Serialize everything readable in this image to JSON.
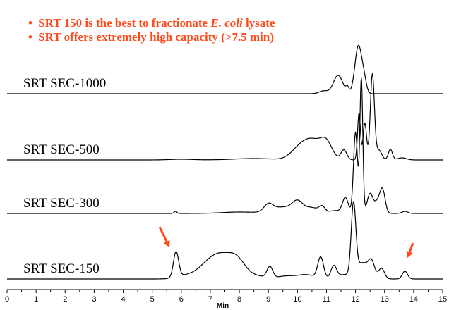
{
  "bullets": [
    {
      "prefix": "SRT 150 is the best to fractionate ",
      "emph": "E. coli",
      "suffix": " lysate"
    },
    {
      "prefix": "SRT offers extremely high capacity (>7.5 min)",
      "emph": "",
      "suffix": ""
    }
  ],
  "bullet_symbol": "•",
  "colors": {
    "accent": "#ff4a1c",
    "trace": "#000000"
  },
  "chart_data": {
    "type": "line",
    "xlabel": "Min",
    "xlim": [
      0,
      15
    ],
    "xticks": [
      "0",
      "1",
      "2",
      "3",
      "4",
      "5",
      "6",
      "7",
      "8",
      "9",
      "10",
      "11",
      "12",
      "13",
      "14",
      "15"
    ],
    "series": [
      {
        "name": "SRT SEC-1000",
        "baseline": 0,
        "peaks": [
          [
            10.9,
            4,
            0.15
          ],
          [
            11.4,
            26,
            0.16
          ],
          [
            11.72,
            8,
            0.05
          ],
          [
            12.1,
            68,
            0.12
          ],
          [
            12.3,
            15,
            0.08
          ]
        ]
      },
      {
        "name": "SRT SEC-500",
        "baseline": 0,
        "peaks": [
          [
            6.0,
            1,
            0.4
          ],
          [
            8.5,
            2,
            0.7
          ],
          [
            10.0,
            10,
            0.28
          ],
          [
            10.5,
            28,
            0.35
          ],
          [
            11.0,
            20,
            0.2
          ],
          [
            11.6,
            14,
            0.1
          ],
          [
            12.12,
            66,
            0.05
          ],
          [
            12.32,
            52,
            0.06
          ],
          [
            12.58,
            121,
            0.07
          ],
          [
            12.8,
            14,
            0.1
          ],
          [
            13.2,
            15,
            0.07
          ],
          [
            13.6,
            3,
            0.15
          ]
        ]
      },
      {
        "name": "SRT SEC-300",
        "baseline": 0,
        "peaks": [
          [
            5.8,
            3,
            0.05
          ],
          [
            8.0,
            2,
            0.6
          ],
          [
            9.0,
            10,
            0.15
          ],
          [
            9.5,
            9,
            0.4
          ],
          [
            10.0,
            14,
            0.18
          ],
          [
            10.5,
            8,
            0.25
          ],
          [
            10.85,
            8,
            0.1
          ],
          [
            11.3,
            4,
            0.2
          ],
          [
            11.65,
            22,
            0.1
          ],
          [
            12.0,
            115,
            0.07
          ],
          [
            12.2,
            190,
            0.05
          ],
          [
            12.5,
            28,
            0.1
          ],
          [
            12.75,
            15,
            0.1
          ],
          [
            12.93,
            33,
            0.09
          ],
          [
            13.7,
            3,
            0.1
          ]
        ]
      },
      {
        "name": "SRT SEC-150",
        "baseline": 0,
        "peaks": [
          [
            5.82,
            36,
            0.09
          ],
          [
            6.1,
            4,
            0.3
          ],
          [
            7.0,
            24,
            0.4
          ],
          [
            7.4,
            16,
            0.3
          ],
          [
            7.9,
            28,
            0.3
          ],
          [
            8.6,
            4,
            0.3
          ],
          [
            9.05,
            16,
            0.1
          ],
          [
            9.6,
            4,
            0.3
          ],
          [
            10.3,
            6,
            0.3
          ],
          [
            10.8,
            30,
            0.1
          ],
          [
            11.25,
            18,
            0.1
          ],
          [
            11.6,
            6,
            0.2
          ],
          [
            11.93,
            100,
            0.08
          ],
          [
            12.2,
            20,
            0.2
          ],
          [
            12.5,
            8,
            0.2
          ],
          [
            12.55,
            16,
            0.1
          ],
          [
            12.9,
            14,
            0.1
          ],
          [
            13.7,
            11,
            0.09
          ]
        ]
      }
    ],
    "annotations": [
      {
        "type": "arrow",
        "x": 5.8,
        "series": "SRT SEC-150"
      },
      {
        "type": "arrow",
        "x": 13.7,
        "series": "SRT SEC-150"
      }
    ]
  }
}
